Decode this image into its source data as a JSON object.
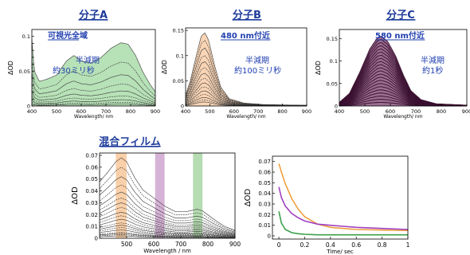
{
  "chart_data": [
    {
      "id": "A",
      "type": "line",
      "title": "分子A",
      "xlabel": "Wavelength/ nm",
      "ylabel": "ΔOD",
      "xlim": [
        400,
        900
      ],
      "ylim": [
        0,
        0.11
      ],
      "xticks": [
        400,
        500,
        600,
        700,
        800,
        900
      ],
      "yticks": [
        0,
        0.01,
        0.02,
        0.03,
        0.04,
        0.05,
        0.06,
        0.07,
        0.08,
        0.09,
        0.1
      ],
      "ytick_labels": [
        "0",
        "",
        "",
        "",
        "",
        "0.05",
        "",
        "",
        "",
        "",
        "0.1"
      ],
      "fill_color": "#9fd79f",
      "line_color": "#333333",
      "labels": [
        "可視光全域",
        "半減期",
        "約30ミリ秒"
      ],
      "profile": [
        [
          400,
          0.95
        ],
        [
          410,
          0.5
        ],
        [
          430,
          0.35
        ],
        [
          460,
          0.38
        ],
        [
          500,
          0.44
        ],
        [
          540,
          0.64
        ],
        [
          570,
          0.72
        ],
        [
          600,
          0.64
        ],
        [
          640,
          0.61
        ],
        [
          680,
          0.69
        ],
        [
          720,
          0.82
        ],
        [
          760,
          0.9
        ],
        [
          790,
          0.88
        ],
        [
          820,
          0.72
        ],
        [
          850,
          0.48
        ],
        [
          880,
          0.3
        ],
        [
          900,
          0.2
        ]
      ],
      "series_peaks": [
        0.101,
        0.07,
        0.05,
        0.035,
        0.024,
        0.016,
        0.01,
        0.006,
        0.003
      ]
    },
    {
      "id": "B",
      "type": "line",
      "title": "分子B",
      "xlabel": "Wavelength/ nm",
      "ylabel": "ΔOD",
      "xlim": [
        400,
        900
      ],
      "ylim": [
        0,
        0.155
      ],
      "xticks": [
        400,
        500,
        600,
        700,
        800,
        900
      ],
      "yticks": [
        0,
        0.05,
        0.1,
        0.15
      ],
      "ytick_labels": [
        "0",
        "0.05",
        "0.1",
        "0.15"
      ],
      "fill_color": "#f7c79d",
      "line_color": "#333333",
      "labels": [
        "480 nm付近",
        "半減期",
        "約100ミリ秒"
      ],
      "profile": [
        [
          400,
          0.15
        ],
        [
          420,
          0.35
        ],
        [
          445,
          0.7
        ],
        [
          465,
          0.96
        ],
        [
          480,
          1.0
        ],
        [
          495,
          0.9
        ],
        [
          520,
          0.55
        ],
        [
          545,
          0.26
        ],
        [
          580,
          0.1
        ],
        [
          640,
          0.04
        ],
        [
          720,
          0.02
        ],
        [
          800,
          0.015
        ],
        [
          900,
          0.01
        ]
      ],
      "series_peaks": [
        0.145,
        0.13,
        0.115,
        0.1,
        0.088,
        0.076,
        0.065,
        0.055,
        0.046,
        0.038,
        0.03,
        0.023,
        0.017,
        0.012,
        0.008
      ]
    },
    {
      "id": "C",
      "type": "line",
      "title": "分子C",
      "xlabel": "Wavelength/ nm",
      "ylabel": "ΔOD",
      "xlim": [
        400,
        900
      ],
      "ylim": [
        0,
        0.17
      ],
      "xticks": [
        400,
        500,
        600,
        700,
        800,
        900
      ],
      "yticks": [
        0,
        0.05,
        0.1,
        0.15
      ],
      "ytick_labels": [
        "0",
        "0.05",
        "0.1",
        "0.15"
      ],
      "fill_color": "#7a3d6a",
      "line_color": "#3a1030",
      "labels": [
        "580 nm付近",
        "半減期",
        "約1秒"
      ],
      "profile": [
        [
          400,
          0.05
        ],
        [
          440,
          0.18
        ],
        [
          480,
          0.48
        ],
        [
          520,
          0.82
        ],
        [
          550,
          0.98
        ],
        [
          565,
          1.0
        ],
        [
          590,
          0.92
        ],
        [
          620,
          0.72
        ],
        [
          650,
          0.45
        ],
        [
          680,
          0.22
        ],
        [
          720,
          0.09
        ],
        [
          780,
          0.03
        ],
        [
          900,
          0.01
        ]
      ],
      "series_peaks": [
        0.155,
        0.148,
        0.141,
        0.134,
        0.127,
        0.12,
        0.113,
        0.106,
        0.099,
        0.092,
        0.085,
        0.078,
        0.071,
        0.064,
        0.057,
        0.05,
        0.043,
        0.036,
        0.029,
        0.022,
        0.015,
        0.008
      ]
    },
    {
      "id": "mix",
      "type": "line",
      "title": "混合フィルム",
      "xlabel": "Wavelength / nm",
      "ylabel": "ΔOD",
      "xlim": [
        400,
        900
      ],
      "ylim": [
        0,
        0.072
      ],
      "xticks": [
        500,
        600,
        700,
        800,
        900
      ],
      "yticks": [
        0,
        0.01,
        0.02,
        0.03,
        0.04,
        0.05,
        0.06,
        0.07
      ],
      "ytick_labels": [
        "0",
        "0.01",
        "0.02",
        "0.03",
        "0.04",
        "0.05",
        "0.06",
        "0.07"
      ],
      "bands": [
        {
          "from": 460,
          "to": 500,
          "color": "#f8c89a"
        },
        {
          "from": 605,
          "to": 640,
          "color": "#cfa6cf"
        },
        {
          "from": 745,
          "to": 780,
          "color": "#a9d6a3"
        }
      ],
      "line_color": "#333333",
      "profile": [
        [
          400,
          0.7
        ],
        [
          430,
          0.82
        ],
        [
          460,
          0.95
        ],
        [
          480,
          1.0
        ],
        [
          500,
          0.95
        ],
        [
          530,
          0.75
        ],
        [
          560,
          0.6
        ],
        [
          600,
          0.5
        ],
        [
          640,
          0.4
        ],
        [
          680,
          0.33
        ],
        [
          720,
          0.33
        ],
        [
          760,
          0.36
        ],
        [
          780,
          0.34
        ],
        [
          820,
          0.24
        ],
        [
          860,
          0.15
        ],
        [
          900,
          0.1
        ]
      ],
      "series_peaks": [
        0.068,
        0.06,
        0.052,
        0.045,
        0.039,
        0.034,
        0.03,
        0.026,
        0.022,
        0.019,
        0.016,
        0.013,
        0.011,
        0.009,
        0.007,
        0.005,
        0.004,
        0.003,
        0.002
      ]
    },
    {
      "id": "decay",
      "type": "line",
      "title": "",
      "xlabel": "Time/ sec",
      "ylabel": "ΔOD",
      "xlim": [
        -0.05,
        1.0
      ],
      "ylim": [
        -0.003,
        0.075
      ],
      "xticks": [
        0,
        0.2,
        0.4,
        0.6,
        0.8,
        1
      ],
      "xtick_labels": [
        "0",
        "0.2",
        "0.4",
        "0.6",
        "0.8",
        "1"
      ],
      "yticks": [
        0,
        0.01,
        0.02,
        0.03,
        0.04,
        0.05,
        0.06,
        0.07
      ],
      "ytick_labels": [
        "0",
        "0.01",
        "0.02",
        "0.03",
        "0.04",
        "0.05",
        "0.06",
        "0.07"
      ],
      "series": [
        {
          "color": "#f0a040",
          "x": [
            0,
            0.02,
            0.05,
            0.1,
            0.15,
            0.2,
            0.3,
            0.4,
            0.5,
            0.6,
            0.8,
            1.0
          ],
          "y": [
            0.068,
            0.06,
            0.049,
            0.035,
            0.025,
            0.018,
            0.011,
            0.008,
            0.007,
            0.006,
            0.0055,
            0.005
          ]
        },
        {
          "color": "#a040c0",
          "x": [
            0,
            0.02,
            0.05,
            0.1,
            0.15,
            0.2,
            0.3,
            0.4,
            0.5,
            0.6,
            0.8,
            1.0
          ],
          "y": [
            0.046,
            0.036,
            0.028,
            0.021,
            0.017,
            0.014,
            0.011,
            0.01,
            0.009,
            0.008,
            0.007,
            0.006
          ]
        },
        {
          "color": "#3aa04a",
          "x": [
            0,
            0.02,
            0.05,
            0.1,
            0.15,
            0.2,
            0.3,
            0.4,
            0.5,
            0.6,
            0.8,
            1.0
          ],
          "y": [
            0.023,
            0.012,
            0.006,
            0.003,
            0.002,
            0.0015,
            0.001,
            0.001,
            0.001,
            0.001,
            0.001,
            0.001
          ]
        }
      ]
    }
  ]
}
